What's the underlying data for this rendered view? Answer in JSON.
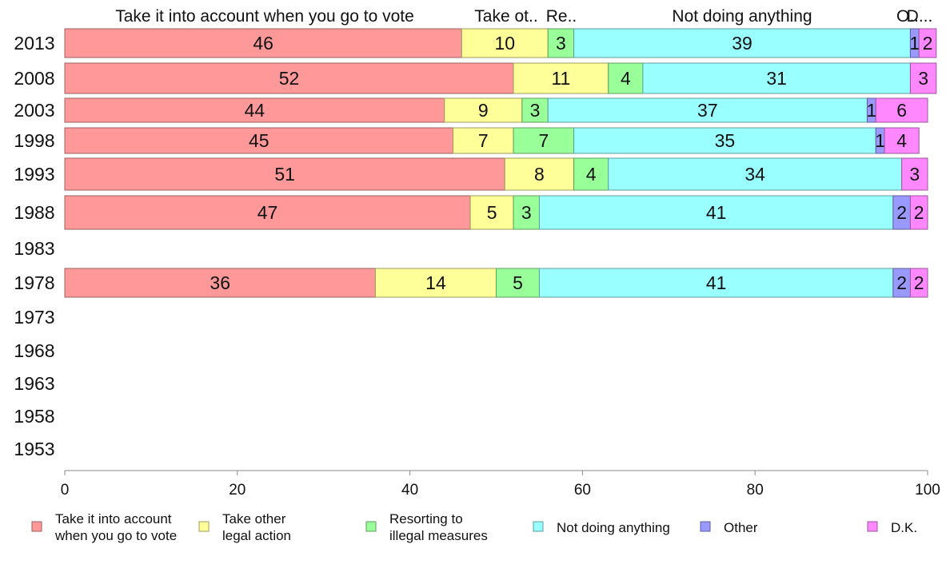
{
  "chart_data": {
    "type": "bar",
    "orientation": "horizontal",
    "stacked": true,
    "xlim": [
      0,
      100
    ],
    "x_ticks": [
      0,
      20,
      40,
      60,
      80,
      100
    ],
    "categories": [
      "2013",
      "2008",
      "2003",
      "1998",
      "1993",
      "1988",
      "1983",
      "1978",
      "1973",
      "1968",
      "1963",
      "1958",
      "1953"
    ],
    "top_labels": [
      "Take it into account when you go to vote",
      "Take ot..",
      "Re..",
      "Not doing anything",
      "O..",
      "D..."
    ],
    "series": [
      {
        "name": "Take it into account when you go to vote",
        "legend_lines": [
          "Take it into account",
          "when you go to vote"
        ],
        "color": "#ff9999",
        "values": [
          46,
          52,
          44,
          45,
          51,
          47,
          null,
          36,
          null,
          null,
          null,
          null,
          null
        ]
      },
      {
        "name": "Take other legal action",
        "legend_lines": [
          "Take other",
          "legal action"
        ],
        "color": "#ffff99",
        "values": [
          10,
          11,
          9,
          7,
          8,
          5,
          null,
          14,
          null,
          null,
          null,
          null,
          null
        ]
      },
      {
        "name": "Resorting to illegal measures",
        "legend_lines": [
          "Resorting to",
          "illegal measures"
        ],
        "color": "#99ff99",
        "values": [
          3,
          4,
          3,
          7,
          4,
          3,
          null,
          5,
          null,
          null,
          null,
          null,
          null
        ]
      },
      {
        "name": "Not doing anything",
        "legend_lines": [
          "Not doing anything"
        ],
        "color": "#99ffff",
        "values": [
          39,
          31,
          37,
          35,
          34,
          41,
          null,
          41,
          null,
          null,
          null,
          null,
          null
        ]
      },
      {
        "name": "Other",
        "legend_lines": [
          "Other"
        ],
        "color": "#9999ff",
        "values": [
          1,
          0,
          1,
          1,
          0,
          2,
          null,
          2,
          null,
          null,
          null,
          null,
          null
        ]
      },
      {
        "name": "D.K.",
        "legend_lines": [
          "D.K."
        ],
        "color": "#ff88ff",
        "values": [
          2,
          3,
          6,
          4,
          3,
          2,
          null,
          2,
          null,
          null,
          null,
          null,
          null
        ]
      }
    ],
    "legend_position": "bottom",
    "grid": false
  }
}
